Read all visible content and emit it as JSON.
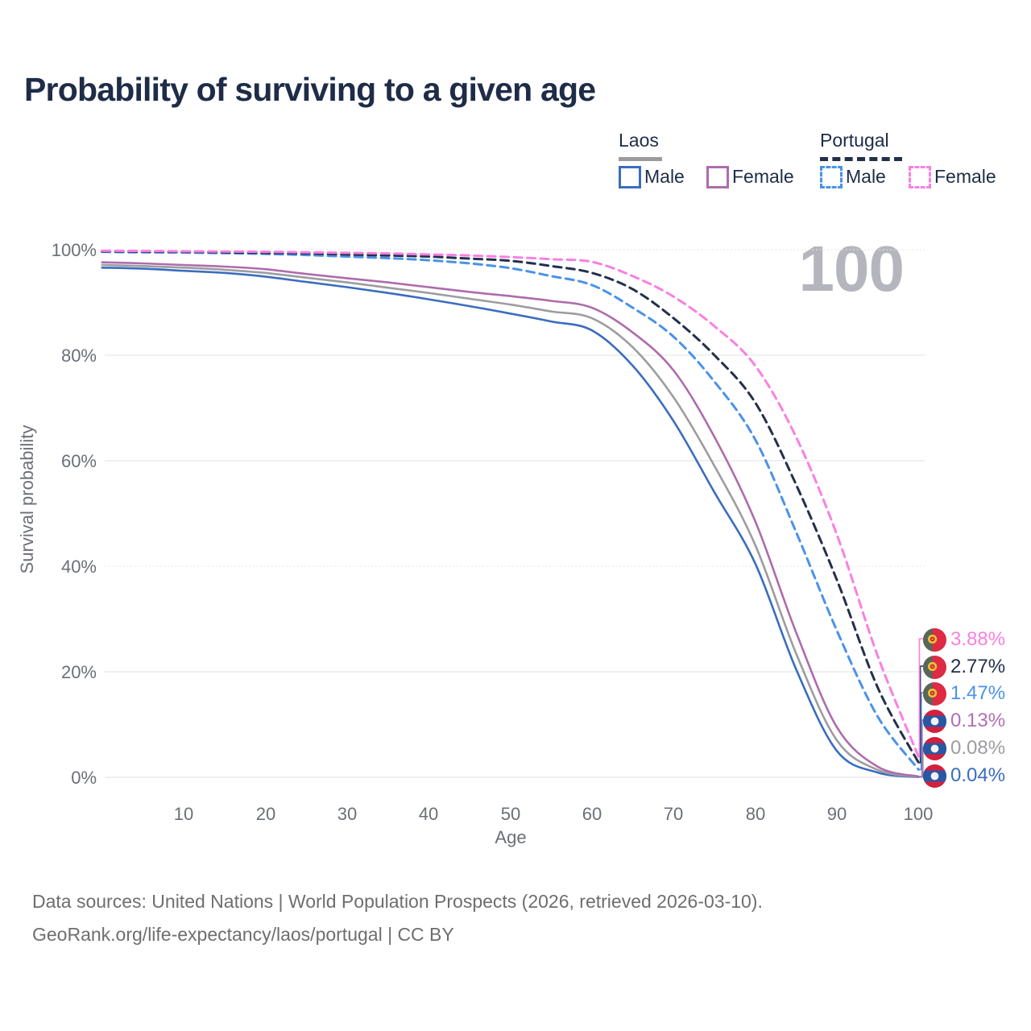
{
  "title": "Probability of surviving to a given age",
  "watermark": "100",
  "legend": {
    "groups": [
      {
        "label": "Laos",
        "line_style": "solid",
        "line_color": "#9b9b9b",
        "items": [
          {
            "label": "Male",
            "color": "#3a6dbf"
          },
          {
            "label": "Female",
            "color": "#ae6cac"
          }
        ]
      },
      {
        "label": "Portugal",
        "line_style": "dashed",
        "line_color": "#243049",
        "items": [
          {
            "label": "Male",
            "color": "#4a92e8"
          },
          {
            "label": "Female",
            "color": "#f980e2"
          }
        ]
      }
    ]
  },
  "y_axis": {
    "title": "Survival probability",
    "ticks": [
      "100%",
      "80%",
      "60%",
      "40%",
      "20%",
      "0%"
    ]
  },
  "x_axis": {
    "title": "Age",
    "ticks": [
      "10",
      "20",
      "30",
      "40",
      "50",
      "60",
      "70",
      "80",
      "90",
      "100"
    ]
  },
  "end_labels": [
    {
      "text": "3.88%",
      "color": "#f980e2",
      "flag": "portugal"
    },
    {
      "text": "2.77%",
      "color": "#23304c",
      "flag": "portugal"
    },
    {
      "text": "1.47%",
      "color": "#4a92e8",
      "flag": "portugal"
    },
    {
      "text": "0.13%",
      "color": "#b36fb0",
      "flag": "laos"
    },
    {
      "text": "0.08%",
      "color": "#9d9da1",
      "flag": "laos"
    },
    {
      "text": "0.04%",
      "color": "#3a6dbf",
      "flag": "laos"
    }
  ],
  "footer": {
    "line1": "Data sources: United Nations | World Population Prospects (2026, retrieved 2026-03-10).",
    "line2": "GeoRank.org/life-expectancy/laos/portugal | CC BY"
  },
  "chart_data": {
    "type": "line",
    "title": "Probability of surviving to a given age",
    "xlabel": "Age",
    "ylabel": "Survival probability",
    "x_range": [
      0,
      100
    ],
    "y_range": [
      0,
      100
    ],
    "grid": true,
    "x": [
      0,
      5,
      10,
      15,
      20,
      25,
      30,
      35,
      40,
      45,
      50,
      55,
      60,
      65,
      70,
      75,
      80,
      85,
      90,
      95,
      100
    ],
    "series": [
      {
        "name": "Laos Male",
        "color": "#3a6dbf",
        "dash": false,
        "end_label_index": 5,
        "values": [
          96.6,
          96.4,
          96.0,
          95.6,
          94.9,
          93.9,
          92.9,
          91.8,
          90.6,
          89.3,
          87.9,
          86.4,
          84.7,
          78.0,
          67.5,
          54.0,
          40.5,
          20.5,
          5.0,
          0.9,
          0.04
        ]
      },
      {
        "name": "Laos Both sexes",
        "color": "#9d9da1",
        "dash": false,
        "end_label_index": 4,
        "values": [
          97.1,
          96.9,
          96.6,
          96.2,
          95.6,
          94.7,
          93.8,
          92.8,
          91.8,
          90.7,
          89.6,
          88.3,
          87.0,
          81.5,
          72.0,
          59.0,
          44.0,
          23.5,
          7.0,
          1.4,
          0.08
        ]
      },
      {
        "name": "Laos Female",
        "color": "#ae6cac",
        "dash": false,
        "end_label_index": 3,
        "values": [
          97.6,
          97.4,
          97.1,
          96.8,
          96.3,
          95.4,
          94.6,
          93.8,
          92.9,
          92.0,
          91.2,
          90.3,
          89.0,
          84.3,
          77.1,
          64.5,
          48.5,
          27.5,
          9.5,
          2.0,
          0.13
        ]
      },
      {
        "name": "Portugal Male",
        "color": "#4a92e8",
        "dash": true,
        "end_label_index": 2,
        "values": [
          99.6,
          99.5,
          99.45,
          99.35,
          99.2,
          99.0,
          98.7,
          98.4,
          98.0,
          97.4,
          96.5,
          95.0,
          93.3,
          89.0,
          83.5,
          75.0,
          64.0,
          46.5,
          27.8,
          11.5,
          1.47
        ]
      },
      {
        "name": "Portugal Both sexes",
        "color": "#23304c",
        "dash": true,
        "end_label_index": 1,
        "values": [
          99.7,
          99.65,
          99.6,
          99.5,
          99.4,
          99.3,
          99.1,
          98.9,
          98.7,
          98.3,
          97.9,
          96.9,
          95.6,
          92.5,
          87.0,
          80.0,
          71.0,
          55.5,
          37.4,
          17.0,
          2.77
        ]
      },
      {
        "name": "Portugal Female",
        "color": "#f980e2",
        "dash": true,
        "end_label_index": 0,
        "values": [
          99.8,
          99.75,
          99.7,
          99.65,
          99.6,
          99.5,
          99.4,
          99.3,
          99.1,
          98.9,
          98.6,
          98.2,
          97.7,
          95.0,
          91.1,
          85.5,
          78.0,
          64.5,
          46.0,
          23.0,
          3.88
        ]
      }
    ]
  }
}
